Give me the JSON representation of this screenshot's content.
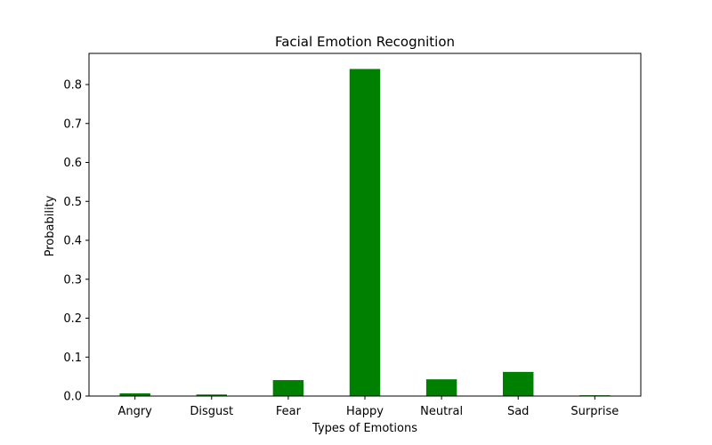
{
  "chart_data": {
    "type": "bar",
    "title": "Facial Emotion Recognition",
    "xlabel": "Types of Emotions",
    "ylabel": "Probability",
    "categories": [
      "Angry",
      "Disgust",
      "Fear",
      "Happy",
      "Neutral",
      "Sad",
      "Surprise"
    ],
    "values": [
      0.007,
      0.004,
      0.041,
      0.84,
      0.043,
      0.062,
      0.002
    ],
    "ylim": [
      0,
      0.88
    ],
    "yticks": [
      "0.0",
      "0.1",
      "0.2",
      "0.3",
      "0.4",
      "0.5",
      "0.6",
      "0.7",
      "0.8"
    ],
    "bar_color": "#008000",
    "grid": false,
    "legend": "none"
  }
}
